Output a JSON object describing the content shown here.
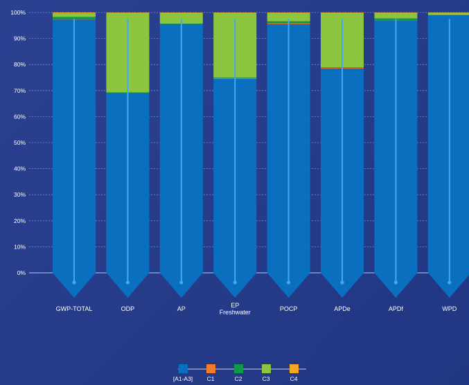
{
  "chart_data": {
    "type": "bar",
    "stacked": true,
    "percent": true,
    "categories": [
      [
        "GWP-TOTAL"
      ],
      [
        "ODP"
      ],
      [
        "AP"
      ],
      [
        "EP",
        "Freshwater"
      ],
      [
        "POCP"
      ],
      [
        "APDe"
      ],
      [
        "APDf"
      ],
      [
        "WPD"
      ]
    ],
    "series": [
      {
        "name": "[A1-A3]",
        "color": "#0b6fc0",
        "values": [
          97.2,
          69.0,
          95.5,
          74.5,
          95.5,
          78.5,
          96.8,
          98.9
        ]
      },
      {
        "name": "C1",
        "color": "#f47a2a",
        "values": [
          0.1,
          0.0,
          0.0,
          0.3,
          0.3,
          0.3,
          0.1,
          0.0
        ]
      },
      {
        "name": "C2",
        "color": "#0e9a48",
        "values": [
          1.0,
          0.3,
          0.2,
          0.2,
          0.8,
          0.1,
          0.8,
          0.1
        ]
      },
      {
        "name": "C3",
        "color": "#8cc63f",
        "values": [
          1.4,
          30.5,
          4.1,
          24.8,
          3.2,
          20.9,
          2.1,
          0.9
        ]
      },
      {
        "name": "C4",
        "color": "#f5a623",
        "values": [
          0.3,
          0.2,
          0.2,
          0.2,
          0.2,
          0.2,
          0.2,
          0.1
        ]
      }
    ],
    "y_ticks": [
      "0%",
      "10%",
      "20%",
      "30%",
      "40%",
      "50%",
      "60%",
      "70%",
      "80%",
      "90%",
      "100%"
    ],
    "ylim": [
      0,
      100
    ],
    "grid": true,
    "legend_position": "bottom-center"
  }
}
